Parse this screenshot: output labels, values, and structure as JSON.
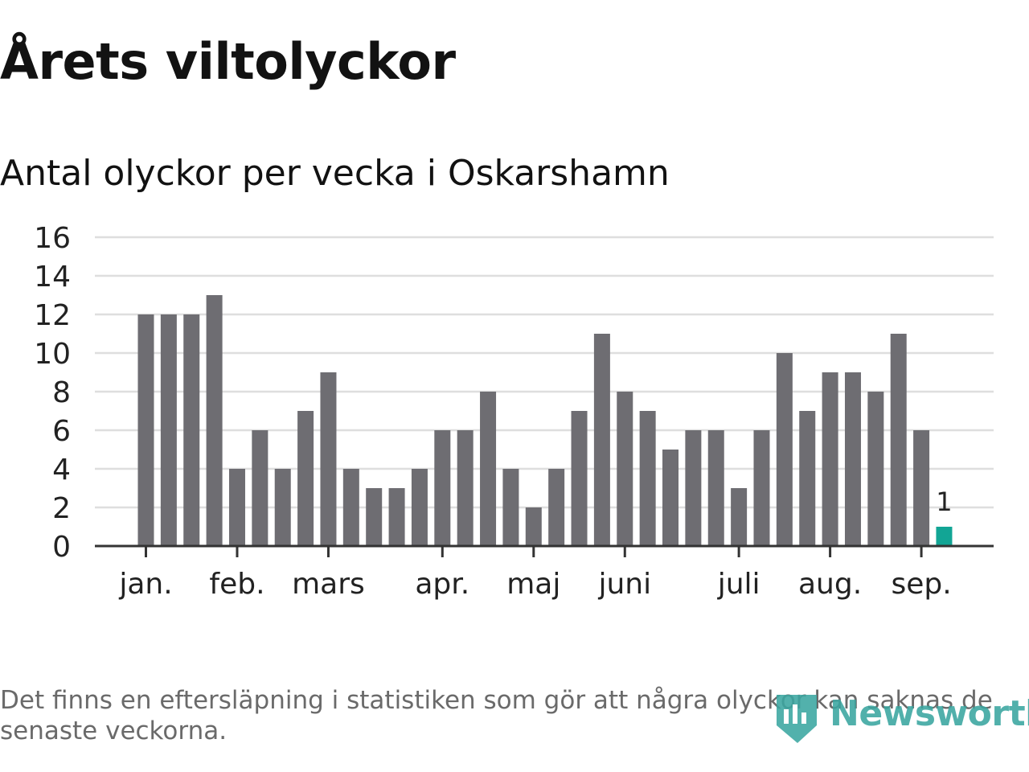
{
  "header": {
    "title": "Årets viltolyckor",
    "subtitle": "Antal olyckor per vecka i Oskarshamn"
  },
  "footnote": "Det finns en eftersläpning i statistiken som gör att några olyckor kan saknas de senaste veckorna.",
  "brand": {
    "name": "Newsworthy"
  },
  "chart_data": {
    "type": "bar",
    "title": "Årets viltolyckor",
    "subtitle": "Antal olyckor per vecka i Oskarshamn",
    "ylim": [
      0,
      16
    ],
    "yticks": [
      0,
      2,
      4,
      6,
      8,
      10,
      12,
      14,
      16
    ],
    "grid": true,
    "values": [
      12,
      12,
      12,
      13,
      4,
      6,
      4,
      7,
      9,
      4,
      3,
      3,
      4,
      6,
      6,
      8,
      4,
      2,
      4,
      7,
      11,
      8,
      7,
      5,
      6,
      6,
      3,
      6,
      10,
      7,
      9,
      9,
      8,
      11,
      6,
      1
    ],
    "highlight_index": 35,
    "highlight_label": "1",
    "month_ticks": [
      {
        "label": "jan.",
        "week": 1
      },
      {
        "label": "feb.",
        "week": 5
      },
      {
        "label": "mars",
        "week": 9
      },
      {
        "label": "apr.",
        "week": 14
      },
      {
        "label": "maj",
        "week": 18
      },
      {
        "label": "juni",
        "week": 22
      },
      {
        "label": "juli",
        "week": 27
      },
      {
        "label": "aug.",
        "week": 31
      },
      {
        "label": "sep.",
        "week": 35
      }
    ],
    "colors": {
      "bar": "#6e6d72",
      "highlight": "#12a595",
      "grid": "#dedede",
      "axis": "#333333"
    }
  }
}
